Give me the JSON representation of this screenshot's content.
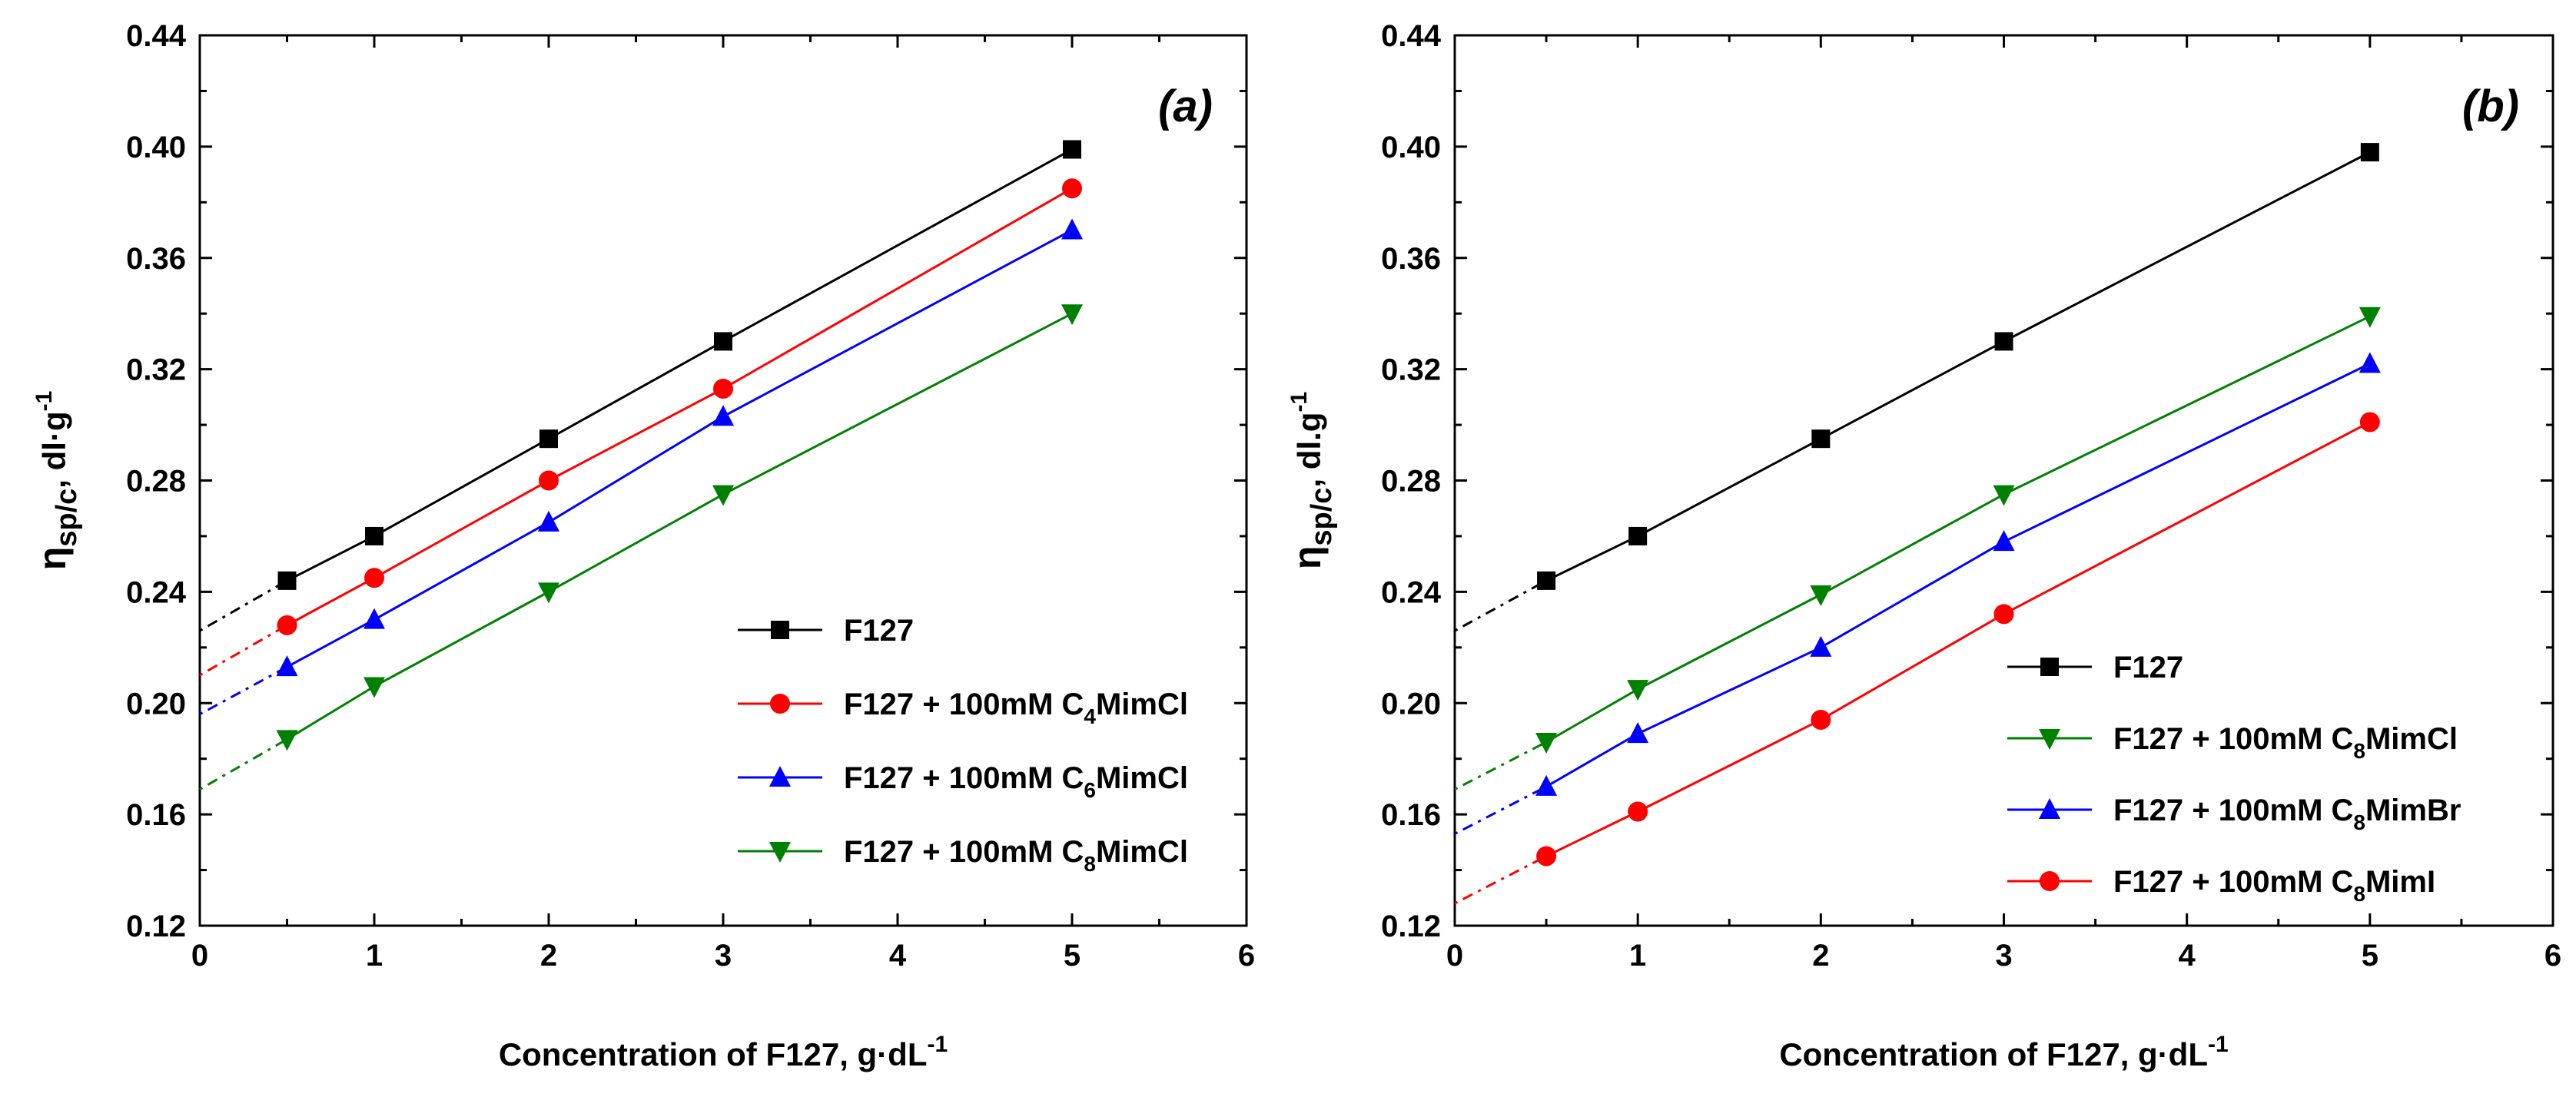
{
  "chart_data": [
    {
      "type": "scatter",
      "panel_label": "(a)",
      "xlabel": "Concentration of F127, g·dL",
      "xlabel_sup": "-1",
      "ylabel_eta": "η",
      "ylabel_sub": "sp/c",
      "ylabel_rest": ", dl·g",
      "ylabel_sup": "-1",
      "xlim": [
        0,
        6
      ],
      "ylim": [
        0.12,
        0.44
      ],
      "x_ticks": [
        "0",
        "1",
        "2",
        "3",
        "4",
        "5",
        "6"
      ],
      "y_ticks": [
        "0.12",
        "0.16",
        "0.20",
        "0.24",
        "0.28",
        "0.32",
        "0.36",
        "0.40",
        "0.44"
      ],
      "legend_position": "lower-right",
      "x": [
        0.5,
        1,
        2,
        3,
        5
      ],
      "series": [
        {
          "name": "F127",
          "name_parts": [
            "F127"
          ],
          "color": "#000000",
          "marker": "square",
          "values": [
            0.244,
            0.26,
            0.295,
            0.33,
            0.399
          ],
          "intercept": 0.226
        },
        {
          "name": "F127 + 100mM C4MimCl",
          "name_parts": [
            "F127 + 100mM C",
            "4",
            "MimCl"
          ],
          "color": "#ff0000",
          "marker": "circle",
          "values": [
            0.228,
            0.245,
            0.28,
            0.313,
            0.385
          ],
          "intercept": 0.21
        },
        {
          "name": "F127 + 100mM C6MimCl",
          "name_parts": [
            "F127 + 100mM C",
            "6",
            "MimCl"
          ],
          "color": "#0000ff",
          "marker": "triangle-up",
          "values": [
            0.213,
            0.23,
            0.265,
            0.303,
            0.37
          ],
          "intercept": 0.196
        },
        {
          "name": "F127 + 100mM C8MimCl",
          "name_parts": [
            "F127 + 100mM C",
            "8",
            "MimCl"
          ],
          "color": "#008000",
          "marker": "triangle-down",
          "values": [
            0.187,
            0.206,
            0.24,
            0.275,
            0.34
          ],
          "intercept": 0.169
        }
      ]
    },
    {
      "type": "scatter",
      "panel_label": "(b)",
      "xlabel": "Concentration of F127, g·dL",
      "xlabel_sup": "-1",
      "ylabel_eta": "η",
      "ylabel_sub": "sp/c",
      "ylabel_rest": ", dl.g",
      "ylabel_sup": "-1",
      "xlim": [
        0,
        6
      ],
      "ylim": [
        0.12,
        0.44
      ],
      "x_ticks": [
        "0",
        "1",
        "2",
        "3",
        "4",
        "5",
        "6"
      ],
      "y_ticks": [
        "0.12",
        "0.16",
        "0.20",
        "0.24",
        "0.28",
        "0.32",
        "0.36",
        "0.40",
        "0.44"
      ],
      "legend_position": "lower-right",
      "x": [
        0.5,
        1,
        2,
        3,
        5
      ],
      "series": [
        {
          "name": "F127",
          "name_parts": [
            "F127"
          ],
          "color": "#000000",
          "marker": "square",
          "values": [
            0.244,
            0.26,
            0.295,
            0.33,
            0.398
          ],
          "intercept": 0.226
        },
        {
          "name": "F127 + 100mM C8MimCl",
          "name_parts": [
            "F127 + 100mM C",
            "8",
            "MimCl"
          ],
          "color": "#008000",
          "marker": "triangle-down",
          "values": [
            0.186,
            0.205,
            0.239,
            0.275,
            0.339
          ],
          "intercept": 0.169
        },
        {
          "name": "F127 + 100mM C8MimBr",
          "name_parts": [
            "F127 + 100mM C",
            "8",
            "MimBr"
          ],
          "color": "#0000ff",
          "marker": "triangle-up",
          "values": [
            0.17,
            0.189,
            0.22,
            0.258,
            0.322
          ],
          "intercept": 0.153
        },
        {
          "name": "F127 + 100mM C8MimI",
          "name_parts": [
            "F127 + 100mM C",
            "8",
            "MimI"
          ],
          "color": "#ff0000",
          "marker": "circle",
          "values": [
            0.145,
            0.161,
            0.194,
            0.232,
            0.301
          ],
          "intercept": 0.128
        }
      ]
    }
  ]
}
